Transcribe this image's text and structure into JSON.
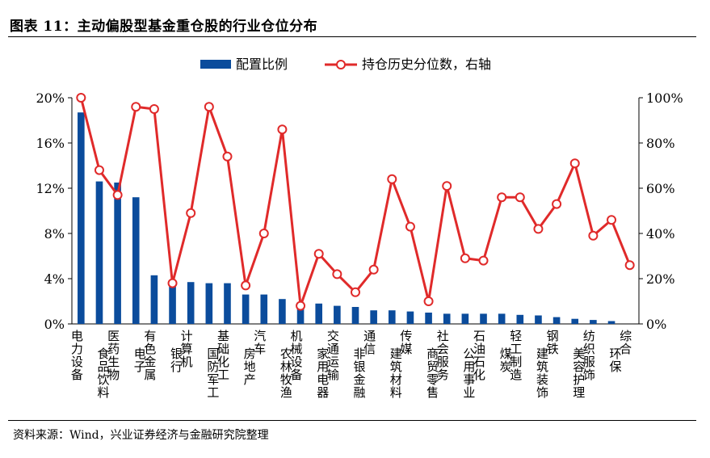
{
  "title": "图表 11：主动偏股型基金重仓股的行业仓位分布",
  "source": "资料来源：Wind，兴业证券经济与金融研究院整理",
  "colors": {
    "bar": "#0b4c9c",
    "line": "#e02a2a",
    "marker_fill": "#ffffff"
  },
  "chart_data": {
    "type": "bar",
    "categories": [
      "电力设备",
      "食品饮料",
      "医药生物",
      "电子",
      "有色金属",
      "银行",
      "计算机",
      "国防军工",
      "基础化工",
      "房地产",
      "汽车",
      "农林牧渔",
      "机械设备",
      "家用电器",
      "交通运输",
      "非银金融",
      "通信",
      "建筑材料",
      "传媒",
      "商贸零售",
      "社会服务",
      "公用事业",
      "石油石化",
      "煤炭",
      "轻工制造",
      "建筑装饰",
      "钢铁",
      "美容护理",
      "纺织服饰",
      "环保",
      "综合"
    ],
    "series": [
      {
        "name": "配置比例",
        "type": "bar",
        "axis": "left",
        "values": [
          18.7,
          12.6,
          12.5,
          11.2,
          4.3,
          3.8,
          3.7,
          3.6,
          3.6,
          2.6,
          2.6,
          2.2,
          1.9,
          1.8,
          1.6,
          1.5,
          1.2,
          1.2,
          1.1,
          1.0,
          0.9,
          0.9,
          0.9,
          0.9,
          0.8,
          0.75,
          0.6,
          0.45,
          0.35,
          0.25,
          0.0
        ]
      },
      {
        "name": "持仓历史分位数，右轴",
        "type": "line",
        "axis": "right",
        "values": [
          100,
          68,
          57,
          96,
          95,
          18,
          49,
          96,
          74,
          17,
          40,
          86,
          8,
          31,
          22,
          14,
          24,
          64,
          43,
          10,
          61,
          29,
          28,
          56,
          56,
          42,
          53,
          71,
          39,
          46,
          26
        ]
      }
    ],
    "y_left": {
      "ticks": [
        "0%",
        "4%",
        "8%",
        "12%",
        "16%",
        "20%"
      ],
      "lim": [
        0,
        20
      ]
    },
    "y_right": {
      "ticks": [
        "0%",
        "20%",
        "40%",
        "60%",
        "80%",
        "100%"
      ],
      "lim": [
        0,
        100
      ]
    },
    "legend_position": "top-center",
    "grid": false
  }
}
